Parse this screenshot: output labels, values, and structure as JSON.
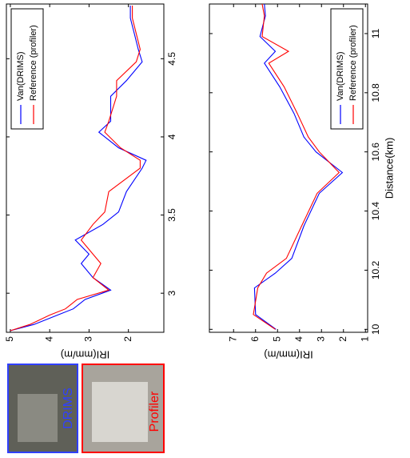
{
  "chart_data": [
    {
      "type": "line",
      "ylabel": "IRI(mm/m)",
      "legend": "upper right",
      "x": [
        2.76,
        2.8,
        2.86,
        2.9,
        2.96,
        3.02,
        3.1,
        3.19,
        3.25,
        3.34,
        3.44,
        3.52,
        3.65,
        3.8,
        3.85,
        3.93,
        4.03,
        4.1,
        4.26,
        4.36,
        4.48,
        4.56,
        4.66,
        4.76,
        4.84
      ],
      "series": [
        {
          "name": "Van(DRIMS)",
          "color": "#0000ff",
          "values": [
            5.0,
            4.4,
            3.8,
            3.4,
            3.1,
            2.45,
            2.9,
            3.2,
            3.0,
            3.35,
            2.65,
            2.25,
            2.05,
            1.65,
            1.55,
            2.25,
            2.75,
            2.45,
            2.45,
            2.05,
            1.65,
            1.75,
            1.85,
            1.95,
            1.95
          ]
        },
        {
          "name": "Reference (profiler)",
          "color": "#ff0000",
          "values": [
            5.0,
            4.5,
            4.0,
            3.6,
            3.3,
            2.5,
            2.9,
            2.7,
            2.9,
            3.2,
            2.9,
            2.6,
            2.5,
            1.7,
            1.7,
            2.2,
            2.6,
            2.5,
            2.3,
            2.3,
            1.8,
            1.7,
            1.8,
            1.9,
            1.9
          ]
        }
      ],
      "xlim": [
        2.75,
        4.85
      ],
      "xticks": [
        3,
        3.5,
        4,
        4.5
      ],
      "ylim": [
        1.1,
        5.1
      ],
      "yticks": [
        2,
        3,
        4,
        5
      ]
    },
    {
      "type": "line",
      "ylabel": "IRI(mm/m)",
      "xlabel": "Distance(km)",
      "legend": "lower right",
      "x": [
        10.0,
        10.05,
        10.14,
        10.19,
        10.24,
        10.35,
        10.46,
        10.53,
        10.6,
        10.65,
        10.73,
        10.82,
        10.9,
        10.94,
        10.99,
        11.06,
        11.1
      ],
      "series": [
        {
          "name": "Van(DRIMS)",
          "color": "#0000ff",
          "values": [
            5.07,
            6.0,
            6.05,
            5.1,
            4.35,
            3.8,
            3.1,
            2.05,
            3.25,
            3.8,
            4.25,
            4.9,
            5.6,
            5.1,
            5.8,
            5.55,
            5.6
          ]
        },
        {
          "name": "Reference (profiler)",
          "color": "#ff0000",
          "values": [
            5.1,
            6.1,
            5.9,
            5.5,
            4.6,
            3.9,
            3.2,
            2.2,
            3.1,
            3.6,
            4.1,
            4.7,
            5.4,
            4.5,
            5.7,
            5.6,
            5.7
          ]
        }
      ],
      "xlim": [
        9.99,
        11.1
      ],
      "xticks": [
        10,
        10.2,
        10.4,
        10.6,
        10.8,
        11
      ],
      "ylim": [
        0.9,
        8.1
      ],
      "yticks": [
        1,
        2,
        3,
        4,
        5,
        6,
        7
      ]
    }
  ],
  "photos": [
    {
      "label": "DRIMS"
    },
    {
      "label": "Profiler"
    }
  ]
}
